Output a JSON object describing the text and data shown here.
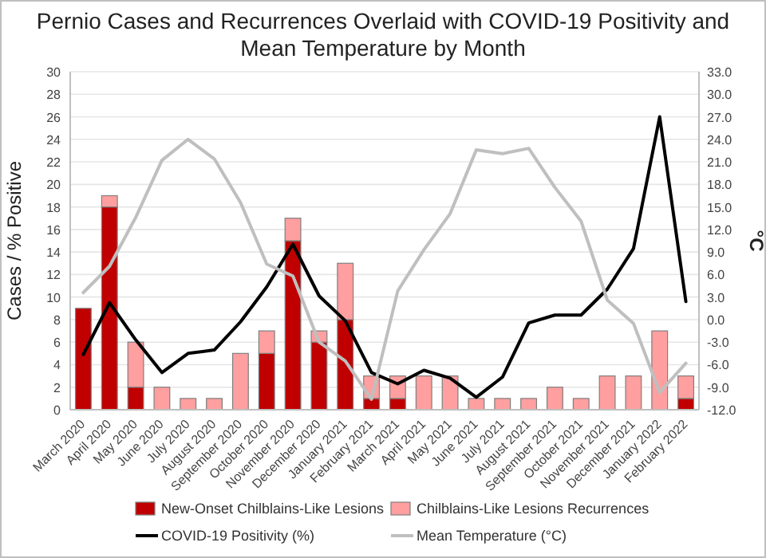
{
  "chart_data": {
    "type": "bar",
    "title": "Pernio Cases and Recurrences Overlaid with COVID-19 Positivity and Mean Temperature by Month",
    "ylabel": "Cases  /  % Positive",
    "y2label": "°C",
    "categories": [
      "March 2020",
      "April 2020",
      "May 2020",
      "June 2020",
      "July 2020",
      "August 2020",
      "September 2020",
      "October 2020",
      "November 2020",
      "December 2020",
      "January 2021",
      "February 2021",
      "March 2021",
      "April 2021",
      "May 2021",
      "June 2021",
      "July 2021",
      "August 2021",
      "September 2021",
      "October 2021",
      "November 2021",
      "December 2021",
      "January 2022",
      "February 2022"
    ],
    "stacked": true,
    "grid": "y",
    "legend": "bottom",
    "ylim": [
      0,
      30
    ],
    "yticks": [
      0,
      2,
      4,
      6,
      8,
      10,
      12,
      14,
      16,
      18,
      20,
      22,
      24,
      26,
      28,
      30
    ],
    "y2lim": [
      -12,
      33
    ],
    "y2ticks": [
      {
        "value": -12,
        "label": "-12.0"
      },
      {
        "value": -9,
        "label": "-9.0"
      },
      {
        "value": -6,
        "label": "-6.0"
      },
      {
        "value": -3,
        "label": "-3.0"
      },
      {
        "value": 0,
        "label": "0.0"
      },
      {
        "value": 3,
        "label": "3.0"
      },
      {
        "value": 6,
        "label": "6.0"
      },
      {
        "value": 9,
        "label": "9.0"
      },
      {
        "value": 12,
        "label": "12.0"
      },
      {
        "value": 15,
        "label": "15.0"
      },
      {
        "value": 18,
        "label": "18.0"
      },
      {
        "value": 21,
        "label": "21.0"
      },
      {
        "value": 24,
        "label": "24.0"
      },
      {
        "value": 27,
        "label": "27.0"
      },
      {
        "value": 30,
        "label": "30.0"
      },
      {
        "value": 33,
        "label": "33.0"
      }
    ],
    "series": [
      {
        "name": "New-Onset Chilblains-Like Lesions",
        "type": "bar",
        "color": "#c00000",
        "values": [
          9,
          18,
          2,
          0,
          0,
          0,
          0,
          5,
          15,
          6,
          8,
          1,
          1,
          0,
          0,
          0,
          0,
          0,
          0,
          0,
          0,
          0,
          0,
          1
        ]
      },
      {
        "name": "Chilblains-Like Lesions Recurrences",
        "type": "bar",
        "color": "#ff9f9f",
        "values": [
          0,
          1,
          4,
          2,
          1,
          1,
          5,
          2,
          2,
          1,
          5,
          2,
          2,
          3,
          3,
          1,
          1,
          1,
          2,
          1,
          3,
          3,
          7,
          2
        ]
      },
      {
        "name": "COVID-19 Positivity (%)",
        "type": "line",
        "color": "#000000",
        "values": [
          4.9,
          9.5,
          6.2,
          3.3,
          5.0,
          5.3,
          7.8,
          10.9,
          14.7,
          10.1,
          7.9,
          3.3,
          2.3,
          3.5,
          2.8,
          1.1,
          2.9,
          7.7,
          8.4,
          8.4,
          10.7,
          14.3,
          26,
          9.6
        ]
      },
      {
        "name": "Mean Temperature (°C)",
        "type": "line",
        "axis": "y2",
        "color": "#bfbfbf",
        "values": [
          3.6,
          7.1,
          13.6,
          21.2,
          24,
          21.4,
          15.6,
          7.4,
          5.8,
          -3,
          -5.5,
          -10.6,
          3.8,
          9.3,
          14.1,
          22.6,
          22.1,
          22.8,
          17.6,
          13.1,
          2.6,
          -0.5,
          -9.7,
          -5.8
        ]
      }
    ]
  }
}
